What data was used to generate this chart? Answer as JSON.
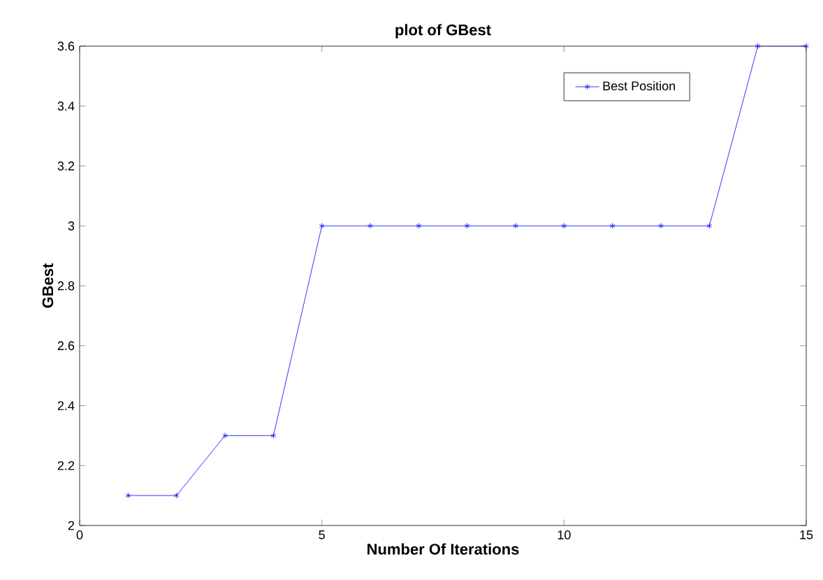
{
  "chart_data": {
    "type": "line",
    "title": "plot of GBest",
    "xlabel": "Number Of Iterations",
    "ylabel": "GBest",
    "x": [
      1,
      2,
      3,
      4,
      5,
      6,
      7,
      8,
      9,
      10,
      11,
      12,
      13,
      14,
      15
    ],
    "series": [
      {
        "name": "Best Position",
        "color": "#0000ff",
        "values": [
          2.1,
          2.1,
          2.3,
          2.3,
          3,
          3,
          3,
          3,
          3,
          3,
          3,
          3,
          3,
          3.6,
          3.6
        ]
      }
    ],
    "xlim": [
      0,
      15
    ],
    "xticks": [
      0,
      5,
      10,
      15
    ],
    "ylim": [
      2,
      3.6
    ],
    "yticks": [
      2,
      2.2,
      2.4,
      2.6,
      2.8,
      3,
      3.2,
      3.4,
      3.6
    ],
    "grid": false,
    "legend": "top right",
    "marker": "cross",
    "line_style": "solid"
  }
}
